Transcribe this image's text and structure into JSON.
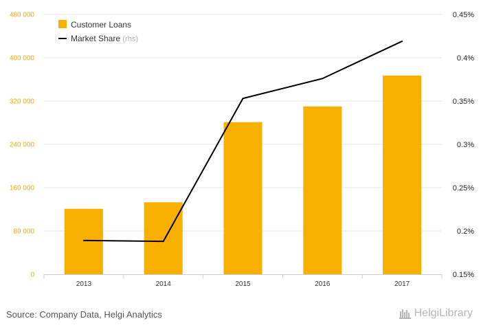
{
  "chart_data": {
    "type": "bar",
    "categories": [
      "2013",
      "2014",
      "2015",
      "2016",
      "2017"
    ],
    "series": [
      {
        "name": "Customer Loans",
        "type": "bar",
        "axis": "left",
        "color": "#f7b000",
        "values": [
          121000,
          133000,
          281000,
          310000,
          367000
        ]
      },
      {
        "name": "Market Share",
        "legend_suffix": "(rhs)",
        "type": "line",
        "axis": "right",
        "color": "#000000",
        "values": [
          0.189,
          0.188,
          0.353,
          0.376,
          0.419
        ]
      }
    ],
    "ylim_left": [
      0,
      480000
    ],
    "ylim_right": [
      0.15,
      0.45
    ],
    "y_left_ticks": [
      "0",
      "80 000",
      "160 000",
      "240 000",
      "320 000",
      "400 000",
      "480 000"
    ],
    "y_right_ticks": [
      "0.15%",
      "0.2%",
      "0.25%",
      "0.3%",
      "0.35%",
      "0.4%",
      "0.45%"
    ],
    "grid": "horizontal",
    "legend_position": "top-left"
  },
  "source_text": "Source: Company Data, Helgi Analytics",
  "logo_text": "HelgiLibrary",
  "colors": {
    "bar": "#f7b000",
    "line": "#000000",
    "left_axis_labels": "#f2a900",
    "grid": "#e6e6e6"
  }
}
